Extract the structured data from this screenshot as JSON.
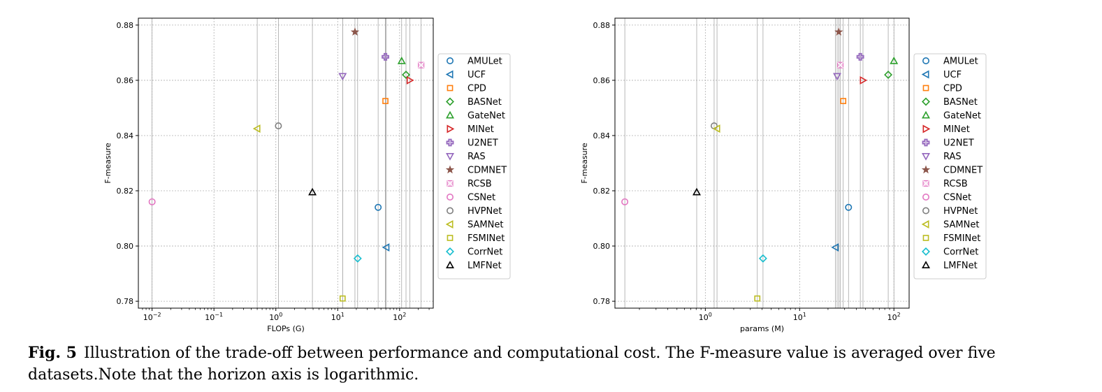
{
  "caption": {
    "label": "Fig. 5",
    "text": "Illustration of the trade-off between performance and computational cost. The F-measure value is averaged over five datasets.Note that the horizon axis is logarithmic."
  },
  "legend_entries": [
    {
      "name": "AMULet",
      "marker": "circle",
      "color": "#1f77b4"
    },
    {
      "name": "UCF",
      "marker": "triangle-left",
      "color": "#1f77b4"
    },
    {
      "name": "CPD",
      "marker": "square",
      "color": "#ff7f0e"
    },
    {
      "name": "BASNet",
      "marker": "diamond",
      "color": "#2ca02c"
    },
    {
      "name": "GateNet",
      "marker": "triangle-up",
      "color": "#2ca02c"
    },
    {
      "name": "MINet",
      "marker": "triangle-right",
      "color": "#d62728"
    },
    {
      "name": "U2NET",
      "marker": "plus",
      "color": "#9467bd"
    },
    {
      "name": "RAS",
      "marker": "triangle-down",
      "color": "#9467bd"
    },
    {
      "name": "CDMNET",
      "marker": "star",
      "color": "#8c564b"
    },
    {
      "name": "RCSB",
      "marker": "x",
      "color": "#e377c2"
    },
    {
      "name": "CSNet",
      "marker": "circle",
      "color": "#e377c2"
    },
    {
      "name": "HVPNet",
      "marker": "circle",
      "color": "#7f7f7f"
    },
    {
      "name": "SAMNet",
      "marker": "triangle-left",
      "color": "#bcbd22"
    },
    {
      "name": "FSMINet",
      "marker": "square",
      "color": "#bcbd22"
    },
    {
      "name": "CorrNet",
      "marker": "diamond",
      "color": "#17becf"
    },
    {
      "name": "LMFNet",
      "marker": "triangle-up",
      "color": "#000000"
    }
  ],
  "chart_data": [
    {
      "type": "scatter",
      "xlabel": "FLOPs (G)",
      "ylabel": "F-measure",
      "x_scale": "log",
      "xlim": [
        0.006,
        350
      ],
      "ylim": [
        0.7775,
        0.8825
      ],
      "x_ticks": [
        0.01,
        0.1,
        1,
        10,
        100
      ],
      "x_tick_labels": [
        [
          "10",
          "−2"
        ],
        [
          "10",
          "−1"
        ],
        [
          "10",
          "0"
        ],
        [
          "10",
          "1"
        ],
        [
          "10",
          "2"
        ]
      ],
      "y_ticks": [
        0.78,
        0.8,
        0.82,
        0.84,
        0.86,
        0.88
      ],
      "y_tick_labels": [
        "0.78",
        "0.80",
        "0.82",
        "0.84",
        "0.86",
        "0.88"
      ],
      "grid": true,
      "vertical_guides": true,
      "legend": "outside-right",
      "points": [
        {
          "name": "AMULet",
          "x": 45,
          "y": 0.814
        },
        {
          "name": "UCF",
          "x": 61,
          "y": 0.7995
        },
        {
          "name": "CPD",
          "x": 59,
          "y": 0.8525
        },
        {
          "name": "BASNet",
          "x": 127,
          "y": 0.862
        },
        {
          "name": "GateNet",
          "x": 108,
          "y": 0.867
        },
        {
          "name": "MINet",
          "x": 146,
          "y": 0.86
        },
        {
          "name": "U2NET",
          "x": 59,
          "y": 0.8685
        },
        {
          "name": "RAS",
          "x": 12,
          "y": 0.8615
        },
        {
          "name": "CDMNET",
          "x": 19,
          "y": 0.8775
        },
        {
          "name": "RCSB",
          "x": 223,
          "y": 0.8655
        },
        {
          "name": "CSNet",
          "x": 0.01,
          "y": 0.816
        },
        {
          "name": "HVPNet",
          "x": 1.1,
          "y": 0.8435
        },
        {
          "name": "SAMNet",
          "x": 0.5,
          "y": 0.8425
        },
        {
          "name": "FSMINet",
          "x": 12,
          "y": 0.781
        },
        {
          "name": "CorrNet",
          "x": 21,
          "y": 0.7955
        },
        {
          "name": "LMFNet",
          "x": 3.9,
          "y": 0.8195
        }
      ]
    },
    {
      "type": "scatter",
      "xlabel": "params (M)",
      "ylabel": "F-measure",
      "x_scale": "log",
      "xlim": [
        0.11,
        145
      ],
      "ylim": [
        0.7775,
        0.8825
      ],
      "x_ticks": [
        1,
        10,
        100
      ],
      "x_tick_labels": [
        [
          "10",
          "0"
        ],
        [
          "10",
          "1"
        ],
        [
          "10",
          "2"
        ]
      ],
      "y_ticks": [
        0.78,
        0.8,
        0.82,
        0.84,
        0.86,
        0.88
      ],
      "y_tick_labels": [
        "0.78",
        "0.80",
        "0.82",
        "0.84",
        "0.86",
        "0.88"
      ],
      "grid": true,
      "vertical_guides": true,
      "legend": "outside-right",
      "points": [
        {
          "name": "AMULet",
          "x": 33,
          "y": 0.814
        },
        {
          "name": "UCF",
          "x": 24,
          "y": 0.7995
        },
        {
          "name": "CPD",
          "x": 29,
          "y": 0.8525
        },
        {
          "name": "BASNet",
          "x": 87,
          "y": 0.862
        },
        {
          "name": "GateNet",
          "x": 100,
          "y": 0.867
        },
        {
          "name": "MINet",
          "x": 47,
          "y": 0.86
        },
        {
          "name": "U2NET",
          "x": 44,
          "y": 0.8685
        },
        {
          "name": "RAS",
          "x": 25,
          "y": 0.8615
        },
        {
          "name": "CDMNET",
          "x": 26,
          "y": 0.8775
        },
        {
          "name": "RCSB",
          "x": 27,
          "y": 0.8655
        },
        {
          "name": "CSNet",
          "x": 0.14,
          "y": 0.816
        },
        {
          "name": "HVPNet",
          "x": 1.24,
          "y": 0.8435
        },
        {
          "name": "SAMNet",
          "x": 1.33,
          "y": 0.8425
        },
        {
          "name": "FSMINet",
          "x": 3.56,
          "y": 0.781
        },
        {
          "name": "CorrNet",
          "x": 4.09,
          "y": 0.7955
        },
        {
          "name": "LMFNet",
          "x": 0.81,
          "y": 0.8195
        }
      ]
    }
  ]
}
